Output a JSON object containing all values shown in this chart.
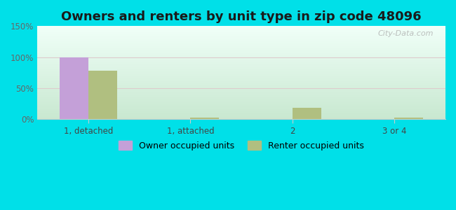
{
  "title": "Owners and renters by unit type in zip code 48096",
  "categories": [
    "1, detached",
    "1, attached",
    "2",
    "3 or 4"
  ],
  "owner_values": [
    100,
    0,
    0,
    0
  ],
  "renter_values": [
    78,
    3,
    18,
    3
  ],
  "owner_color": "#c4a0d8",
  "renter_color": "#b0bf80",
  "ylim": [
    0,
    150
  ],
  "yticks": [
    0,
    50,
    100,
    150
  ],
  "ytick_labels": [
    "0%",
    "50%",
    "100%",
    "150%"
  ],
  "grad_bottom": "#c8e8d0",
  "grad_top": "#f0fff8",
  "outer_bg": "#00e0e8",
  "bar_width": 0.28,
  "title_fontsize": 13,
  "watermark": "City-Data.com",
  "legend_labels": [
    "Owner occupied units",
    "Renter occupied units"
  ],
  "grid_color": "#ddcccc",
  "spine_color": "#cccccc"
}
